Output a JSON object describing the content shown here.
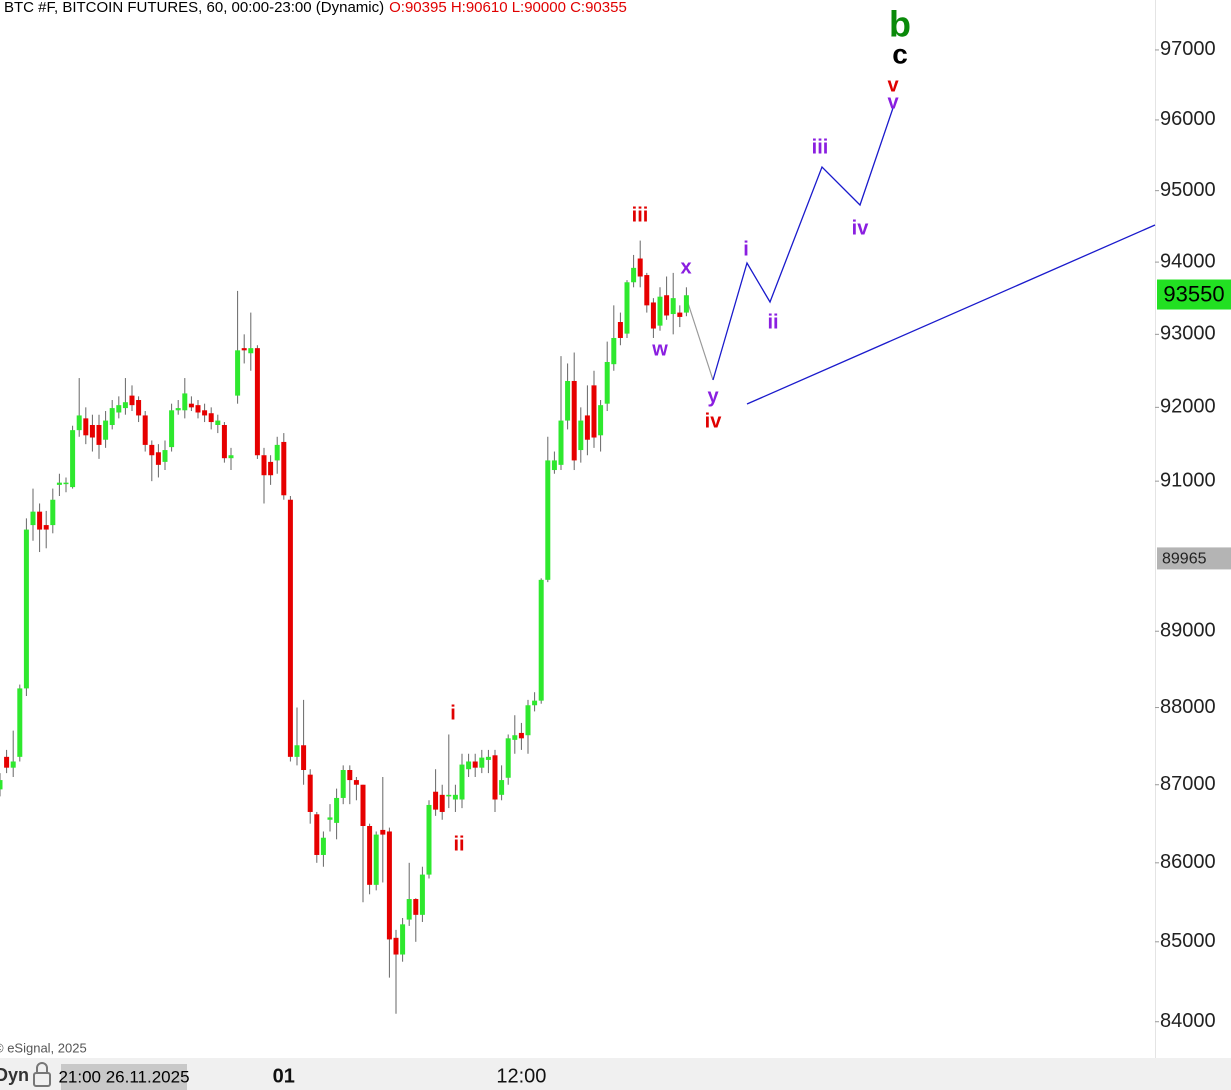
{
  "chart_data": {
    "type": "candlestick",
    "title": "BTC #F, BITCOIN FUTURES, 60, 00:00-23:00 (Dynamic)",
    "subtitle": "O:90395 H:90610 L:90000 C:90355",
    "copyright": "© eSignal, 2025",
    "mode_label": "Dyn",
    "cursor_label": "21:00 26.11.2025",
    "log_scale": true,
    "up_color": "#2ee82e",
    "down_color": "#e60000",
    "categories": [
      null,
      null,
      null,
      null,
      null,
      null,
      null,
      null,
      null,
      null,
      null,
      null,
      null,
      null,
      null,
      null,
      null,
      null,
      null,
      null,
      null,
      null,
      null,
      null,
      null,
      null,
      null,
      null,
      null,
      null,
      null,
      null,
      null,
      null,
      null,
      null,
      null,
      null,
      null,
      null,
      null,
      null,
      null,
      "01",
      null,
      null,
      null,
      null,
      null,
      null,
      null,
      null,
      null,
      null,
      null,
      null,
      null,
      null,
      null,
      null,
      null,
      null,
      null,
      null,
      null,
      null,
      null,
      null,
      null,
      null,
      null,
      null,
      null,
      null,
      null,
      null,
      null,
      null,
      null,
      "12:00",
      null,
      null,
      null,
      null,
      null,
      null,
      null,
      null,
      null,
      null,
      null,
      null,
      null,
      null,
      null,
      null,
      null,
      null,
      null,
      null,
      null,
      null,
      null,
      null,
      null
    ],
    "open": [
      86940,
      87360,
      87220,
      87360,
      88250,
      90410,
      90590,
      90410,
      90410,
      90950,
      90960,
      90920,
      91690,
      91850,
      91760,
      91760,
      91560,
      91760,
      91930,
      91990,
      92160,
      92100,
      91890,
      91490,
      91390,
      91260,
      91460,
      91960,
      91960,
      92050,
      92030,
      91960,
      91920,
      91760,
      91760,
      91310,
      92160,
      92810,
      92740,
      92810,
      91350,
      91260,
      91280,
      91530,
      90750,
      87360,
      87510,
      87130,
      86620,
      86100,
      86550,
      86510,
      86830,
      87190,
      87060,
      87000,
      86470,
      85720,
      86420,
      86400,
      85050,
      84840,
      85280,
      85540,
      85340,
      85850,
      86910,
      86870,
      86850,
      86810,
      86810,
      87200,
      87300,
      87220,
      87320,
      87380,
      86870,
      87090,
      87580,
      87670,
      87640,
      88030,
      88090,
      89680,
      91150,
      91220,
      91820,
      92360,
      91420,
      91890,
      92300,
      91620,
      92050,
      92590,
      93170,
      93010,
      93720,
      94050,
      93820,
      93440,
      93120,
      93540,
      93280,
      93300,
      93300
    ],
    "high": [
      87150,
      87450,
      87700,
      88300,
      90500,
      90900,
      90700,
      90600,
      90900,
      91100,
      91050,
      91750,
      92400,
      92000,
      91900,
      91900,
      91950,
      92100,
      92150,
      92400,
      92300,
      92150,
      91950,
      91550,
      91500,
      91550,
      92050,
      92100,
      92400,
      92150,
      92100,
      92050,
      92000,
      91900,
      91800,
      91450,
      93600,
      93000,
      93300,
      92850,
      91450,
      91350,
      91600,
      91650,
      90800,
      88000,
      88100,
      87200,
      86650,
      86400,
      86750,
      86950,
      87250,
      87250,
      87100,
      87000,
      86500,
      86400,
      87100,
      86450,
      85150,
      85300,
      86000,
      85550,
      85950,
      86800,
      87200,
      87000,
      87650,
      87000,
      87400,
      87400,
      87400,
      87450,
      87450,
      87450,
      87250,
      87650,
      87900,
      87800,
      88100,
      88200,
      89700,
      91600,
      91400,
      92700,
      92600,
      92750,
      92000,
      92300,
      92500,
      92100,
      92900,
      93400,
      93300,
      93750,
      94100,
      94300,
      93850,
      93500,
      93650,
      93800,
      93850,
      93400,
      93650
    ],
    "low": [
      86850,
      87150,
      87100,
      87300,
      88150,
      90200,
      90050,
      90100,
      90300,
      90800,
      90850,
      90900,
      91600,
      91500,
      91400,
      91300,
      91450,
      91700,
      91850,
      91900,
      91950,
      91800,
      91400,
      91000,
      91050,
      91150,
      91400,
      91900,
      91850,
      91950,
      91850,
      91800,
      91700,
      91650,
      91250,
      91150,
      92050,
      92600,
      92500,
      91300,
      90700,
      90950,
      91100,
      90750,
      87300,
      87250,
      87000,
      86500,
      86000,
      85950,
      86400,
      86300,
      86750,
      86750,
      86800,
      85500,
      85600,
      85650,
      85750,
      84550,
      84100,
      84750,
      85200,
      85000,
      85250,
      85800,
      86600,
      86550,
      86700,
      86650,
      86700,
      87100,
      87100,
      87150,
      87150,
      86650,
      86800,
      87000,
      87400,
      87450,
      87400,
      87950,
      88050,
      89650,
      91100,
      91150,
      91700,
      91150,
      91250,
      91350,
      91450,
      91400,
      91950,
      92500,
      92850,
      92950,
      93650,
      93650,
      93300,
      92950,
      93050,
      93200,
      93000,
      93100,
      93250
    ],
    "close": [
      87060,
      87220,
      87300,
      88250,
      90350,
      90590,
      90350,
      90350,
      90750,
      90980,
      90980,
      91690,
      91890,
      91620,
      91590,
      91490,
      91820,
      91990,
      92030,
      92070,
      92030,
      91890,
      91490,
      91350,
      91220,
      91420,
      91960,
      91990,
      92190,
      92000,
      91930,
      91890,
      91800,
      91820,
      91310,
      91350,
      92780,
      92780,
      92810,
      91350,
      91080,
      91080,
      91490,
      90810,
      87360,
      87510,
      87190,
      86650,
      86100,
      86320,
      86580,
      86830,
      87190,
      87060,
      87000,
      86470,
      85720,
      86360,
      86360,
      85030,
      84840,
      85220,
      85540,
      85340,
      85850,
      86740,
      86680,
      86650,
      86870,
      86870,
      87260,
      87300,
      87220,
      87350,
      87360,
      86810,
      87060,
      87600,
      87640,
      87600,
      88030,
      88090,
      89680,
      91280,
      91280,
      91820,
      92360,
      91280,
      91820,
      91560,
      91590,
      92030,
      92620,
      92950,
      92950,
      93720,
      93920,
      93800,
      93400,
      93080,
      93520,
      93260,
      93500,
      93240,
      93540
    ],
    "ylim": [
      83550,
      97720
    ],
    "yticks": [
      84000,
      85000,
      86000,
      87000,
      88000,
      89000,
      91000,
      92000,
      93000,
      94000,
      95000,
      96000,
      97000
    ],
    "last_price": 93550,
    "last_price_color": "#22e022",
    "marker_price": 89965,
    "annotations": [
      {
        "text": "iii",
        "color": "#e00000"
      },
      {
        "text": "x",
        "color": "#8a1ee0"
      },
      {
        "text": "w",
        "color": "#8a1ee0"
      },
      {
        "text": "y",
        "color": "#8a1ee0"
      },
      {
        "text": "iv",
        "color": "#e00000"
      },
      {
        "text": "i",
        "color": "#8a1ee0"
      },
      {
        "text": "ii",
        "color": "#8a1ee0"
      },
      {
        "text": "iii",
        "color": "#8a1ee0"
      },
      {
        "text": "iv",
        "color": "#8a1ee0"
      },
      {
        "text": "v",
        "color": "#e00000"
      },
      {
        "text": "v",
        "color": "#8a1ee0"
      },
      {
        "text": "b",
        "color": "#0a8a0a"
      },
      {
        "text": "c",
        "color": "#000000"
      },
      {
        "text": "i",
        "color": "#e00000"
      },
      {
        "text": "ii",
        "color": "#e00000"
      }
    ]
  }
}
